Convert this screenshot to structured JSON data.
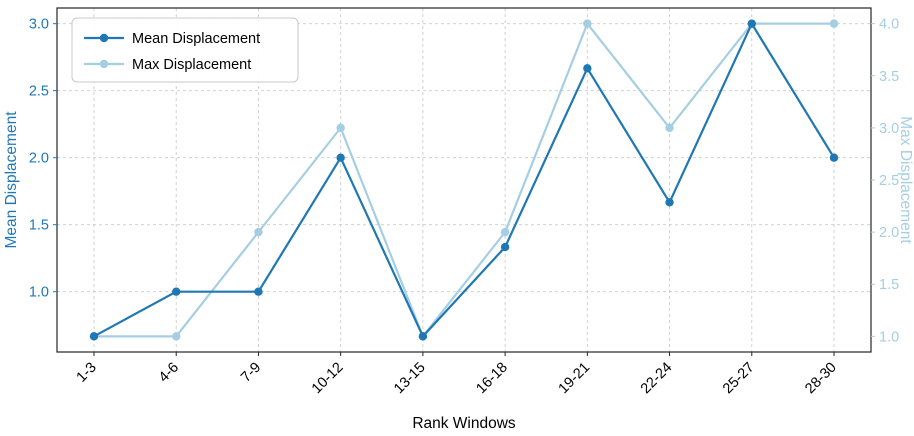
{
  "chart_data": {
    "type": "line",
    "title": "",
    "xlabel": "Rank Windows",
    "categories": [
      "1-3",
      "4-6",
      "7-9",
      "10-12",
      "13-15",
      "16-18",
      "19-21",
      "22-24",
      "25-27",
      "28-30"
    ],
    "series": [
      {
        "name": "Mean Displacement",
        "axis": "left",
        "color": "#1f78b4",
        "marker": "circle",
        "values": [
          0.667,
          1.0,
          1.0,
          2.0,
          0.667,
          1.333,
          2.667,
          1.667,
          3.0,
          2.0
        ]
      },
      {
        "name": "Max Displacement",
        "axis": "right",
        "color": "#a6cee3",
        "marker": "circle",
        "values": [
          1.0,
          1.0,
          2.0,
          3.0,
          1.0,
          2.0,
          4.0,
          3.0,
          4.0,
          4.0
        ]
      }
    ],
    "left_axis": {
      "label": "Mean Displacement",
      "color": "#1f78b4",
      "ticks": [
        1.0,
        1.5,
        2.0,
        2.5,
        3.0
      ],
      "min": 0.55,
      "max": 3.117
    },
    "right_axis": {
      "label": "Max Displacement",
      "color": "#a6cee3",
      "ticks": [
        1.0,
        1.5,
        2.0,
        2.5,
        3.0,
        3.5,
        4.0
      ],
      "min": 0.85,
      "max": 4.15
    },
    "grid": true,
    "grid_color": "#cccccc",
    "legend_position": "top-left",
    "legend_entries": [
      "Mean Displacement",
      "Max Displacement"
    ]
  }
}
